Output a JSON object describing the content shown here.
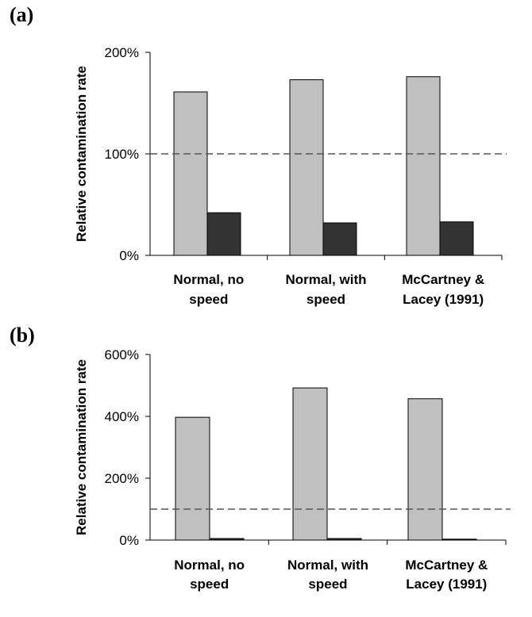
{
  "chart_data": [
    {
      "type": "bar",
      "panel_label": "(a)",
      "ylabel": "Relative contamination rate",
      "categories": [
        [
          "Normal, no",
          "speed"
        ],
        [
          "Normal, with",
          "speed"
        ],
        [
          "McCartney &",
          "Lacey (1991)"
        ]
      ],
      "series": [
        {
          "color": "#c0c0c0",
          "values": [
            161,
            173,
            176
          ]
        },
        {
          "color": "#333333",
          "values": [
            42,
            32,
            33
          ]
        }
      ],
      "ylim": [
        0,
        200
      ],
      "yticks": [
        0,
        100,
        200
      ],
      "ytick_labels": [
        "0%",
        "100%",
        "200%"
      ],
      "reference_line": 100
    },
    {
      "type": "bar",
      "panel_label": "(b)",
      "ylabel": "Relative contamination rate",
      "categories": [
        [
          "Normal, no",
          "speed"
        ],
        [
          "Normal, with",
          "speed"
        ],
        [
          "McCartney &",
          "Lacey (1991)"
        ]
      ],
      "series": [
        {
          "color": "#c0c0c0",
          "values": [
            397,
            492,
            457
          ]
        },
        {
          "color": "#333333",
          "values": [
            5,
            5,
            3
          ]
        }
      ],
      "ylim": [
        0,
        600
      ],
      "yticks": [
        0,
        200,
        400,
        600
      ],
      "ytick_labels": [
        "0%",
        "200%",
        "400%",
        "600%"
      ],
      "reference_line": 100
    }
  ]
}
